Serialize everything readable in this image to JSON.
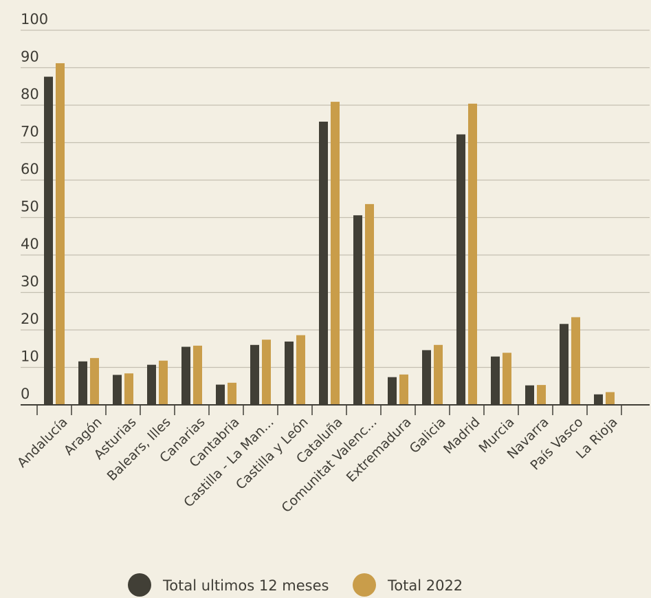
{
  "chart_data": {
    "type": "bar",
    "title": "",
    "xlabel": "",
    "ylabel": "",
    "ylim": [
      0,
      100
    ],
    "yticks": [
      0,
      10,
      20,
      30,
      40,
      50,
      60,
      70,
      80,
      90,
      100
    ],
    "grid": true,
    "legend_position": "bottom",
    "categories": [
      "Andalucía",
      "Aragón",
      "Asturias",
      "Balears, Illes",
      "Canarias",
      "Cantabria",
      "Castilla - La Man...",
      "Castilla y León",
      "Cataluña",
      "Comunitat Valenc...",
      "Extremadura",
      "Galicia",
      "Madrid",
      "Murcia",
      "Navarra",
      "País Vasco",
      "La Rioja"
    ],
    "series": [
      {
        "name": "Total ultimos 12 meses",
        "color": "#413f36",
        "values": [
          87.6,
          11.6,
          8.0,
          10.7,
          15.5,
          5.4,
          16.0,
          16.9,
          75.6,
          50.6,
          7.4,
          14.6,
          72.2,
          12.9,
          5.2,
          21.6,
          2.8
        ]
      },
      {
        "name": "Total 2022",
        "color": "#c99d4a",
        "values": [
          91.2,
          12.5,
          8.4,
          11.8,
          15.8,
          5.9,
          17.4,
          18.6,
          80.9,
          53.6,
          8.1,
          16.0,
          80.4,
          13.9,
          5.3,
          23.4,
          3.4
        ]
      }
    ]
  }
}
